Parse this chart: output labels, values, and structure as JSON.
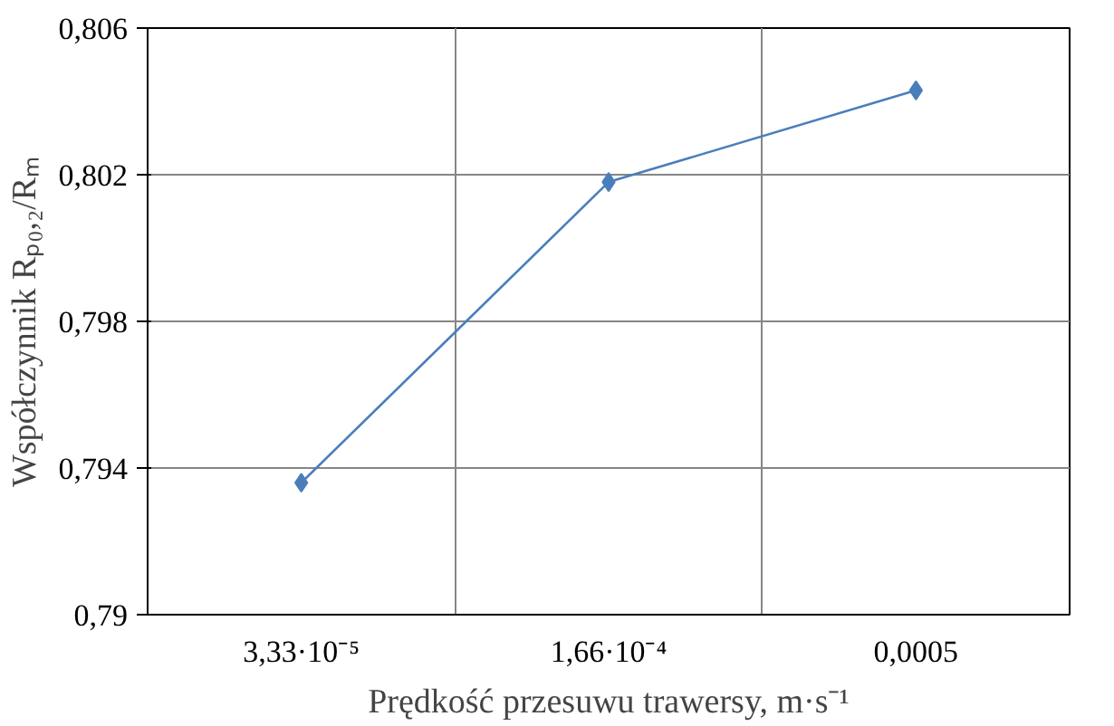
{
  "chart_data": {
    "type": "line",
    "xlabel": "Prędkość przesuwu trawersy, m·s⁻¹",
    "ylabel": "Współczynnik Rₚ₀,₂/Rₘ",
    "categories": [
      "3,33·10⁻⁵",
      "1,66·10⁻⁴",
      "0,0005"
    ],
    "series": [
      {
        "color": "#4a7ebb",
        "values": [
          0.7936,
          0.8018,
          0.8043
        ]
      }
    ],
    "ylim": [
      0.79,
      0.806
    ],
    "yticks": [
      {
        "value": 0.79,
        "label": "0,79"
      },
      {
        "value": 0.794,
        "label": "0,794"
      },
      {
        "value": 0.798,
        "label": "0,798"
      },
      {
        "value": 0.802,
        "label": "0,802"
      },
      {
        "value": 0.806,
        "label": "0,806"
      }
    ],
    "grid": true,
    "marker": "diamond",
    "line_style": "solid"
  }
}
